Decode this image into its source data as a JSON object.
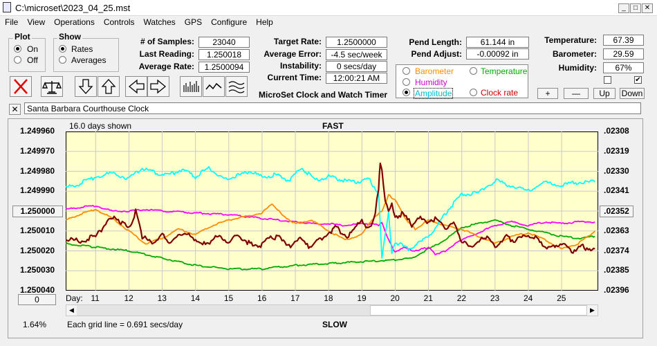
{
  "window": {
    "title": "C:\\microset\\2023_04_25.mst"
  },
  "menu": [
    "File",
    "View",
    "Operations",
    "Controls",
    "Watches",
    "GPS",
    "Configure",
    "Help"
  ],
  "plot": {
    "title": "Plot",
    "on_label": "On",
    "off_label": "Off",
    "selected": "On"
  },
  "show": {
    "title": "Show",
    "rates_label": "Rates",
    "averages_label": "Averages",
    "selected": "Rates"
  },
  "stats": {
    "samples_label": "# of Samples:",
    "samples": "23040",
    "last_reading_label": "Last Reading:",
    "last_reading": "1.250018",
    "average_rate_label": "Average Rate:",
    "average_rate": "1.2500094",
    "target_rate_label": "Target Rate:",
    "target_rate": "1.2500000",
    "average_error_label": "Average Error:",
    "average_error": "-4.5 sec/week",
    "instability_label": "Instability:",
    "instability": "0 secs/day",
    "current_time_label": "Current Time:",
    "current_time": "12:00:21 AM",
    "pend_length_label": "Pend Length:",
    "pend_length": "61.144 in",
    "pend_adjust_label": "Pend Adjust:",
    "pend_adjust": "-0.00092 in",
    "temperature_label": "Temperature:",
    "temperature": "67.39",
    "barometer_label": "Barometer:",
    "barometer": "29.59",
    "humidity_label": "Humidity:",
    "humidity": "67%"
  },
  "app_caption": "MicroSet Clock and Watch Timer",
  "overlay": {
    "barometer": "Barometer",
    "temperature": "Temperature",
    "humidity": "Humidity",
    "amplitude": "Amplitude",
    "clock_rate": "Clock rate",
    "selected": "Amplitude"
  },
  "small_buttons": {
    "plus": "+",
    "minus": "—",
    "up": "Up",
    "down": "Down"
  },
  "right_checkboxes": {
    "first_checked": false,
    "second_checked": true
  },
  "clock_name": "Santa Barbara Courthouse Clock",
  "chart_header": {
    "days_shown": "16.0 days shown",
    "fast": "FAST",
    "slow": "SLOW",
    "grid_note": "Each grid line = 0.691 secs/day",
    "percent": "1.64%",
    "day_label": "Day:",
    "left_button": "1.250000",
    "right_button": ".02352",
    "zero_button": "0"
  },
  "colors": {
    "plot_bg": "#ffffcc",
    "rate": "#800000",
    "amplitude": "#00ffff",
    "barometer": "#ff8c00",
    "temperature": "#00aa00",
    "humidity": "#ff00ff"
  },
  "chart_data": {
    "type": "line",
    "title": "",
    "x_label": "Day",
    "x_ticks": [
      11,
      12,
      13,
      14,
      15,
      16,
      17,
      18,
      19,
      20,
      21,
      22,
      23,
      24,
      25
    ],
    "xlim": [
      10.1,
      26.1
    ],
    "y_left_ticks": [
      "1.249960",
      "1.249970",
      "1.249980",
      "1.249990",
      "1.250000",
      "1.250010",
      "1.250020",
      "1.250030",
      "1.250040"
    ],
    "ylim_left": [
      1.24996,
      1.25004
    ],
    "y_left_inverted": true,
    "y_right_ticks": [
      ".02308",
      ".02319",
      ".02330",
      ".02341",
      ".02352",
      ".02363",
      ".02374",
      ".02385",
      ".02396"
    ],
    "ylim_right": [
      0.02308,
      0.02396
    ],
    "grid": true,
    "series": [
      {
        "key": "amplitude",
        "name": "Amplitude",
        "axis": "right",
        "x": [
          10.1,
          10.5,
          11,
          11.5,
          12,
          12.4,
          12.8,
          13.2,
          13.6,
          14,
          14.4,
          14.8,
          15.2,
          15.6,
          16,
          16.4,
          16.8,
          17.2,
          17.6,
          18,
          18.4,
          18.8,
          19.2,
          19.5,
          19.6,
          19.7,
          19.8,
          19.9,
          20,
          20.4,
          20.8,
          21.2,
          21.6,
          22,
          22.5,
          23,
          23.5,
          24,
          24.5,
          25,
          25.5,
          26.0
        ],
        "y": [
          0.02339,
          0.02337,
          0.02333,
          0.02331,
          0.02334,
          0.02328,
          0.02331,
          0.02332,
          0.02329,
          0.02333,
          0.02328,
          0.02334,
          0.02333,
          0.0233,
          0.02333,
          0.02332,
          0.02335,
          0.02328,
          0.02335,
          0.02333,
          0.02335,
          0.02336,
          0.02334,
          0.02342,
          0.02378,
          0.02364,
          0.02353,
          0.02376,
          0.02369,
          0.02373,
          0.02369,
          0.02362,
          0.02351,
          0.02343,
          0.02342,
          0.02335,
          0.02338,
          0.02341,
          0.02336,
          0.02338,
          0.02336,
          0.02336
        ]
      },
      {
        "key": "rate",
        "name": "Clock rate",
        "axis": "left",
        "x": [
          10.1,
          10.5,
          11,
          11.3,
          11.6,
          12,
          12.2,
          12.4,
          12.7,
          13,
          13.3,
          13.6,
          14,
          14.3,
          14.6,
          15,
          15.3,
          15.6,
          16,
          16.3,
          16.6,
          16.9,
          17.1,
          17.4,
          17.8,
          18.2,
          18.6,
          19,
          19.2,
          19.4,
          19.5,
          19.55,
          19.6,
          19.7,
          19.8,
          19.9,
          20,
          20.2,
          20.5,
          20.8,
          21,
          21.2,
          21.5,
          21.8,
          22,
          22.4,
          22.8,
          23,
          23.3,
          23.6,
          24,
          24.3,
          24.6,
          25,
          25.3,
          25.6,
          26.0
        ],
        "y": [
          1.250014,
          1.250015,
          1.250013,
          1.250006,
          1.250003,
          1.250009,
          1.25,
          1.250013,
          1.250016,
          1.250012,
          1.250016,
          1.250011,
          1.250014,
          1.250017,
          1.250013,
          1.250015,
          1.250012,
          1.250016,
          1.250017,
          1.250013,
          1.250014,
          1.250018,
          1.250014,
          1.250018,
          1.250014,
          1.250008,
          1.250013,
          1.250004,
          1.250009,
          1.250002,
          1.249988,
          1.249975,
          1.24998,
          1.249996,
          1.25,
          1.249995,
          1.250004,
          1.250001,
          1.250007,
          1.250003,
          1.250006,
          1.250004,
          1.250009,
          1.250006,
          1.250016,
          1.250017,
          1.250012,
          1.250018,
          1.250013,
          1.250015,
          1.250012,
          1.250014,
          1.250019,
          1.250016,
          1.25002,
          1.250018,
          1.250019
        ]
      },
      {
        "key": "barometer",
        "name": "Barometer",
        "axis": "right",
        "x": [
          10.1,
          10.5,
          11,
          11.5,
          12,
          12.5,
          13,
          13.5,
          14,
          14.5,
          15,
          15.5,
          16,
          16.3,
          16.6,
          17,
          17.5,
          18,
          18.5,
          19,
          19.3,
          19.6,
          19.8,
          20,
          20.3,
          20.6,
          21,
          21.5,
          22,
          22.5,
          23,
          23.5,
          24,
          24.5,
          25,
          25.5,
          26.0
        ],
        "y": [
          0.02357,
          0.02354,
          0.02351,
          0.02356,
          0.02363,
          0.0237,
          0.02367,
          0.02362,
          0.02365,
          0.0236,
          0.02357,
          0.02355,
          0.02353,
          0.02348,
          0.02354,
          0.02359,
          0.02357,
          0.02363,
          0.02368,
          0.02365,
          0.02357,
          0.02352,
          0.02343,
          0.02346,
          0.02356,
          0.02362,
          0.02357,
          0.0236,
          0.02362,
          0.02366,
          0.0237,
          0.02366,
          0.02364,
          0.02368,
          0.02373,
          0.0237,
          0.02363
        ]
      },
      {
        "key": "humidity",
        "name": "Humidity",
        "axis": "right",
        "x": [
          10.1,
          10.5,
          11,
          11.5,
          12,
          12.5,
          13,
          14,
          15,
          16,
          17,
          17.5,
          18,
          18.5,
          19,
          19.3,
          19.5,
          19.6,
          19.8,
          20,
          20.3,
          20.5,
          20.8,
          21,
          21.2,
          21.5,
          21.8,
          22,
          22.5,
          23,
          23.5,
          24,
          24.5,
          25,
          25.5,
          26.0
        ],
        "y": [
          0.02351,
          0.0235,
          0.02349,
          0.02352,
          0.02352,
          0.02351,
          0.02352,
          0.02353,
          0.02354,
          0.02356,
          0.02358,
          0.02359,
          0.02359,
          0.0236,
          0.02359,
          0.02359,
          0.0236,
          0.02358,
          0.02368,
          0.02375,
          0.02372,
          0.02374,
          0.02373,
          0.02372,
          0.02376,
          0.02374,
          0.0237,
          0.02368,
          0.02364,
          0.0236,
          0.02358,
          0.0236,
          0.02358,
          0.02359,
          0.02358,
          0.02358
        ]
      },
      {
        "key": "temperature",
        "name": "Temperature",
        "axis": "right",
        "x": [
          10.1,
          11,
          12,
          13,
          14,
          15,
          16,
          17,
          18,
          19,
          20,
          20.5,
          21,
          21.5,
          22,
          22.5,
          23,
          23.5,
          24,
          24.5,
          25,
          25.5,
          26.0
        ],
        "y": [
          0.0237,
          0.02372,
          0.02374,
          0.02378,
          0.02382,
          0.02384,
          0.02384,
          0.02382,
          0.02381,
          0.0238,
          0.02379,
          0.02378,
          0.02373,
          0.02368,
          0.02361,
          0.02359,
          0.02357,
          0.0236,
          0.02362,
          0.02364,
          0.02366,
          0.02367,
          0.02366
        ]
      }
    ]
  }
}
